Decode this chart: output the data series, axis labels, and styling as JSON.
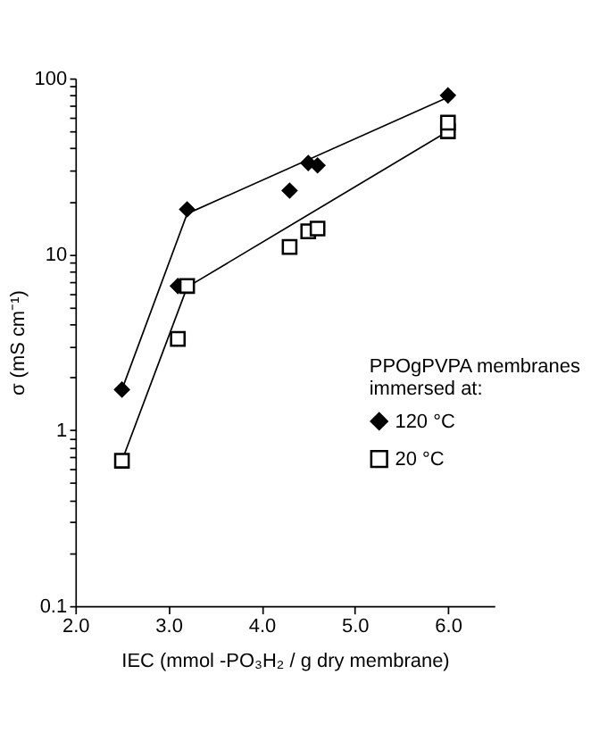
{
  "chart_data": {
    "type": "scatter",
    "xlabel": "IEC (mmol -PO₃H₂ / g dry membrane)",
    "ylabel": "σ (mS cm⁻¹)",
    "legend_title": "PPOgPVPA membranes immersed at:",
    "xlim": [
      2.0,
      6.5
    ],
    "xticks": [
      {
        "value": 2,
        "label": "2.0"
      },
      {
        "value": 3,
        "label": "3.0"
      },
      {
        "value": 4,
        "label": "4.0"
      },
      {
        "value": 5,
        "label": "5.0"
      },
      {
        "value": 6,
        "label": "6.0"
      }
    ],
    "ylim": [
      0.1,
      100
    ],
    "log": "y",
    "yticks": [
      0.1,
      {
        "value": 0.2,
        "label": null
      },
      {
        "value": 0.3,
        "label": null
      },
      {
        "value": 0.4,
        "label": null
      },
      {
        "value": 0.5,
        "label": null
      },
      {
        "value": 0.6,
        "label": null
      },
      {
        "value": 0.7,
        "label": null
      },
      {
        "value": 0.8,
        "label": null
      },
      {
        "value": 0.9,
        "label": null
      },
      1,
      {
        "value": 2,
        "label": null
      },
      {
        "value": 3,
        "label": null
      },
      {
        "value": 4,
        "label": null
      },
      {
        "value": 5,
        "label": null
      },
      {
        "value": 6,
        "label": null
      },
      {
        "value": 7,
        "label": null
      },
      {
        "value": 8,
        "label": null
      },
      {
        "value": 9,
        "label": null
      },
      10,
      {
        "value": 20,
        "label": null
      },
      {
        "value": 30,
        "label": null
      },
      {
        "value": 40,
        "label": null
      },
      {
        "value": 50,
        "label": null
      },
      {
        "value": 60,
        "label": null
      },
      {
        "value": 70,
        "label": null
      },
      {
        "value": 80,
        "label": null
      },
      {
        "value": 90,
        "label": null
      },
      100
    ],
    "grid": false,
    "legend": "right",
    "series": [
      {
        "name": "120 °C",
        "color": "#000000",
        "marker": "diamond",
        "x": [
          2.5,
          3.1,
          3.2,
          4.3,
          4.5,
          4.6,
          6.0
        ],
        "values": [
          1.7,
          6.6,
          18,
          23,
          33,
          32,
          80
        ]
      },
      {
        "name": "20 °C",
        "color": "#000000",
        "marker": "square",
        "x": [
          2.5,
          3.1,
          3.2,
          4.3,
          4.5,
          4.6,
          6.0,
          6.0
        ],
        "values": [
          0.67,
          3.3,
          6.6,
          11,
          13.5,
          14,
          50,
          56
        ]
      },
      {
        "type": "line",
        "color": "#000000",
        "x": [
          2.5,
          3.2,
          6.0
        ],
        "values": [
          1.7,
          17,
          78
        ]
      },
      {
        "type": "line",
        "color": "#000000",
        "x": [
          2.5,
          3.2,
          6.0
        ],
        "values": [
          0.67,
          6.5,
          50
        ]
      }
    ]
  }
}
